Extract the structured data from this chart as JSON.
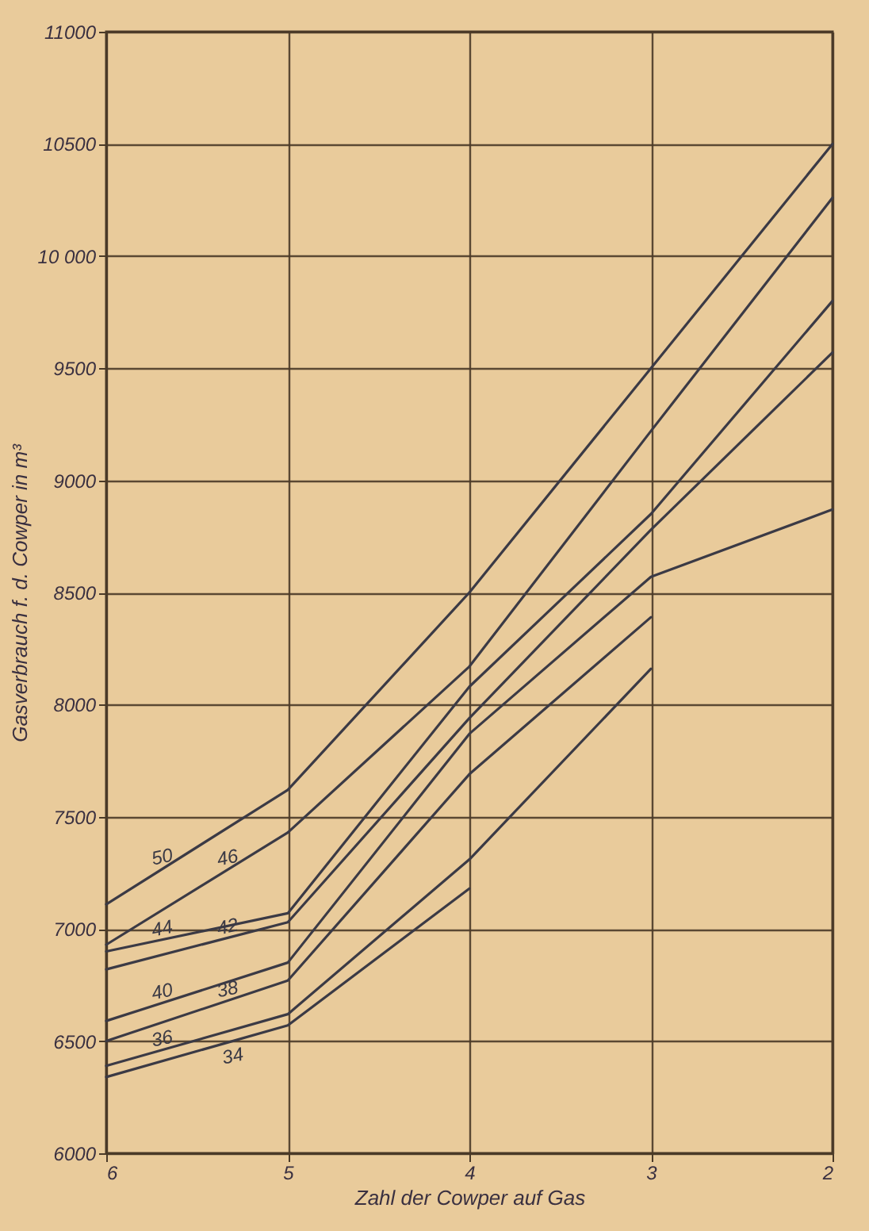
{
  "chart_data": {
    "type": "line",
    "xlabel": "Zahl der Cowper auf Gas",
    "ylabel": "Gasverbrauch f. d. Cowper in m³",
    "x": [
      6,
      5,
      4,
      3,
      2
    ],
    "xlim": [
      6,
      2
    ],
    "xticks": [
      6,
      5,
      4,
      3,
      2
    ],
    "ylim": [
      6000,
      11000
    ],
    "yticks": [
      6000,
      6500,
      7000,
      7500,
      8000,
      8500,
      9000,
      9500,
      {
        "value": 10000,
        "label": "10 000"
      },
      10500,
      11000
    ],
    "grid": true,
    "legend": false,
    "line_style": "solid",
    "series": [
      {
        "name": "50",
        "color": "#3b3a45",
        "values": [
          7110,
          7620,
          8500,
          9500,
          10500
        ]
      },
      {
        "name": "46",
        "color": "#3b3a45",
        "values": [
          6930,
          7430,
          8170,
          9220,
          10260
        ]
      },
      {
        "name": "44",
        "color": "#3b3a45",
        "values": [
          6900,
          7070,
          8080,
          8850,
          9800
        ]
      },
      {
        "name": "42",
        "color": "#3b3a45",
        "values": [
          6820,
          7030,
          7940,
          8780,
          9570
        ]
      },
      {
        "name": "40",
        "color": "#3b3a45",
        "values": [
          6590,
          6850,
          7870,
          8570,
          8870
        ]
      },
      {
        "name": "38",
        "color": "#3b3a45",
        "values": [
          6500,
          6770,
          7690,
          8390,
          null
        ]
      },
      {
        "name": "36",
        "color": "#3b3a45",
        "values": [
          6390,
          6620,
          7310,
          8160,
          null
        ]
      },
      {
        "name": "34",
        "color": "#3b3a45",
        "values": [
          6340,
          6570,
          7180,
          null,
          null
        ]
      }
    ]
  }
}
